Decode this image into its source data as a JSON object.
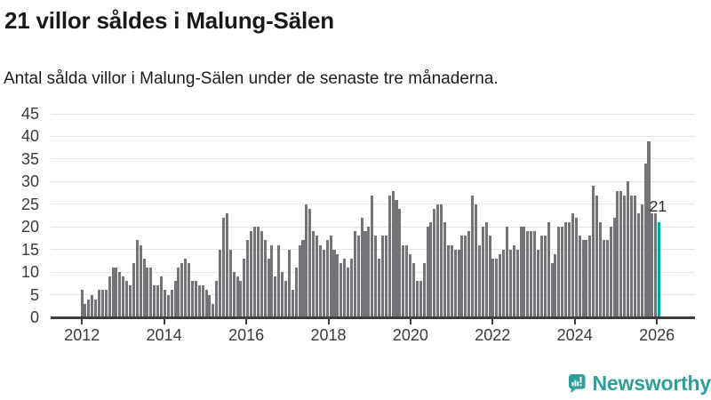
{
  "header": {
    "title": "21 villor såldes i Malung-Sälen",
    "subtitle": "Antal sålda villor i Malung-Sälen under de senaste tre månaderna."
  },
  "chart_data": {
    "type": "bar",
    "title": "21 villor såldes i Malung-Sälen",
    "xlabel": "",
    "ylabel": "",
    "ylim": [
      0,
      45
    ],
    "grid": true,
    "frequency": "monthly",
    "series_start": "2012-01",
    "y_ticks": [
      0,
      5,
      10,
      15,
      20,
      25,
      30,
      35,
      40,
      45
    ],
    "x_tick_labels": [
      "2012",
      "2014",
      "2016",
      "2018",
      "2020",
      "2022",
      "2024",
      "2026"
    ],
    "values": [
      6,
      3,
      4,
      5,
      4,
      6,
      6,
      6,
      9,
      11,
      11,
      10,
      9,
      8,
      7,
      12,
      17,
      16,
      13,
      11,
      11,
      7,
      7,
      9,
      6,
      5,
      6,
      8,
      11,
      12,
      13,
      12,
      8,
      8,
      7,
      7,
      6,
      5,
      3,
      8,
      15,
      22,
      23,
      15,
      10,
      9,
      8,
      13,
      17,
      19,
      20,
      20,
      19,
      17,
      13,
      16,
      9,
      16,
      10,
      8,
      15,
      6,
      11,
      16,
      17,
      25,
      24,
      19,
      18,
      16,
      15,
      17,
      18,
      15,
      14,
      12,
      13,
      11,
      13,
      19,
      18,
      22,
      19,
      20,
      27,
      18,
      13,
      18,
      18,
      27,
      28,
      26,
      24,
      16,
      16,
      14,
      12,
      8,
      8,
      12,
      20,
      21,
      24,
      25,
      25,
      21,
      16,
      16,
      15,
      15,
      18,
      18,
      19,
      27,
      25,
      16,
      20,
      21,
      18,
      13,
      13,
      14,
      15,
      20,
      15,
      16,
      15,
      20,
      20,
      19,
      19,
      19,
      15,
      18,
      18,
      21,
      12,
      14,
      20,
      20,
      21,
      21,
      23,
      22,
      18,
      17,
      17,
      18,
      29,
      27,
      21,
      17,
      17,
      20,
      22,
      28,
      28,
      27,
      30,
      27,
      27,
      23,
      25,
      34,
      39,
      23,
      23,
      21
    ],
    "bar_color": "#737378",
    "highlight": {
      "index": 167,
      "value": 21,
      "label": "21",
      "color": "#00a2a2"
    }
  },
  "footer": {
    "brand": "Newsworthy",
    "brand_color": "#2f9e99",
    "logo_icon": "bar-chart-speech-bubble-icon"
  }
}
